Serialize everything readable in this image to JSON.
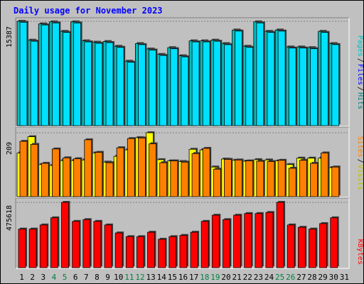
{
  "chart_data": {
    "type": "bar",
    "title": "Daily usage for November 2023",
    "categories": [
      "1",
      "2",
      "3",
      "4",
      "5",
      "6",
      "7",
      "8",
      "9",
      "10",
      "11",
      "12",
      "13",
      "14",
      "15",
      "16",
      "17",
      "18",
      "19",
      "20",
      "21",
      "22",
      "23",
      "24",
      "25",
      "26",
      "27",
      "28",
      "29",
      "30",
      "31"
    ],
    "weekend_days": [
      "4",
      "5",
      "11",
      "12",
      "18",
      "19",
      "25",
      "26"
    ],
    "colors": {
      "background": "#c0c0c0",
      "title": "#0000ff",
      "hits": "#00c0c0",
      "files": "#00e0ff",
      "pages": "#00a0d0",
      "visits": "#ffff00",
      "sites": "#ff8000",
      "kbytes": "#ff0000",
      "weekday_label": "#000000",
      "weekend_label": "#008040"
    },
    "panels": [
      {
        "id": "hits",
        "max_label": "15387",
        "ymax": 15387,
        "legend": [
          "Pages",
          "/",
          "Files",
          "/",
          "Hits"
        ],
        "legend_colors": [
          "#00c0c0",
          "#000000",
          "#0000ff",
          "#000000",
          "#008080"
        ],
        "series": [
          {
            "name": "Hits",
            "color": "#00c0c0",
            "values": [
              15387,
              12600,
              15000,
              15300,
              13900,
              15300,
              12500,
              12300,
              12400,
              11700,
              9500,
              12100,
              11300,
              10500,
              11500,
              10300,
              12500,
              12500,
              12600,
              12100,
              14100,
              11700,
              15300,
              13900,
              14100,
              11600,
              11600,
              11500,
              13900,
              12100,
              0
            ]
          },
          {
            "name": "Files",
            "color": "#00e0ff",
            "values": [
              15250,
              12450,
              14850,
              15150,
              13750,
              15150,
              12350,
              12150,
              12250,
              11550,
              9350,
              11950,
              11150,
              10350,
              11350,
              10150,
              12350,
              12350,
              12450,
              11950,
              13950,
              11550,
              15150,
              13750,
              13950,
              11450,
              11450,
              11350,
              13750,
              11950,
              0
            ]
          }
        ]
      },
      {
        "id": "visits",
        "max_label": "209",
        "ymax": 209,
        "legend": [
          "Sites",
          "/",
          "Visits"
        ],
        "legend_colors": [
          "#ff8000",
          "#000000",
          "#c0c000"
        ],
        "series": [
          {
            "name": "Visits",
            "color": "#ffff00",
            "values": [
              143,
              196,
              105,
              102,
              118,
              118,
              120,
              143,
              113,
              132,
              153,
              193,
              209,
              121,
              117,
              115,
              155,
              153,
              97,
              123,
              119,
              116,
              121,
              120,
              117,
              105,
              126,
              126,
              126,
              95,
              0
            ]
          },
          {
            "name": "Sites",
            "color": "#ff8000",
            "values": [
              181,
              171,
              109,
              156,
              127,
              124,
              186,
              145,
              111,
              160,
              190,
              192,
              173,
              111,
              117,
              113,
              141,
              158,
              90,
              122,
              120,
              117,
              116,
              115,
              119,
              93,
              119,
              109,
              143,
              97,
              0
            ]
          }
        ]
      },
      {
        "id": "kbytes",
        "max_label": "475618",
        "ymax": 475618,
        "legend": [
          "KBytes"
        ],
        "legend_colors": [
          "#ff0000"
        ],
        "series": [
          {
            "name": "KBytes",
            "color": "#ff0000",
            "values": [
              281000,
              281000,
              311000,
              363000,
              475618,
              337000,
              350000,
              337000,
              311000,
              253000,
              226000,
              226000,
              258000,
              207000,
              226000,
              235000,
              258000,
              337000,
              382000,
              350000,
              382000,
              394000,
              394000,
              402000,
              475618,
              311000,
              294000,
              281000,
              321000,
              363000,
              0
            ]
          }
        ]
      }
    ]
  }
}
